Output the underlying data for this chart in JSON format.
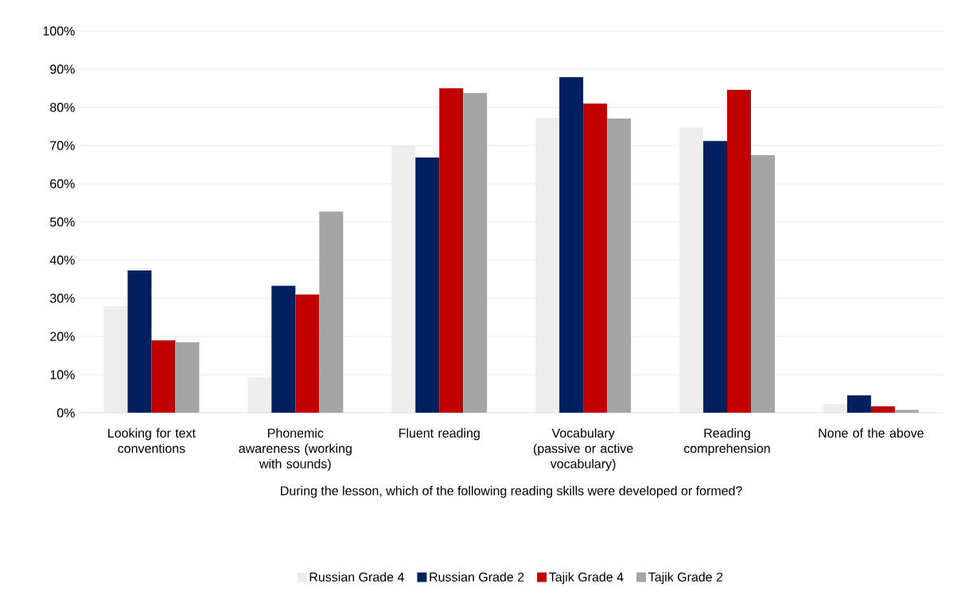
{
  "chart_data": {
    "type": "bar",
    "xlabel": "During the lesson, which of the following reading skills were developed or formed?",
    "categories": [
      "Looking for text conventions",
      "Phonemic awareness (working with sounds)",
      "Fluent reading",
      "Vocabulary (passive or active vocabulary)",
      "Reading comprehension",
      "None of the above"
    ],
    "series": [
      {
        "name": "Russian Grade 4",
        "color": "#ededed",
        "values": [
          27.9,
          9.2,
          70.0,
          77.3,
          74.8,
          2.3
        ]
      },
      {
        "name": "Russian Grade 2",
        "color": "#002060",
        "values": [
          37.3,
          33.3,
          66.9,
          87.9,
          71.2,
          4.6
        ]
      },
      {
        "name": "Tajik Grade 4",
        "color": "#c00000",
        "values": [
          19.0,
          31.0,
          85.0,
          81.0,
          84.6,
          1.7
        ]
      },
      {
        "name": "Tajik Grade 2",
        "color": "#a5a5a5",
        "values": [
          18.5,
          52.7,
          83.8,
          77.1,
          67.5,
          0.8
        ]
      }
    ],
    "ylim": [
      0,
      100
    ],
    "yticks": [
      {
        "value": 0,
        "label": "0%"
      },
      {
        "value": 10,
        "label": "10%"
      },
      {
        "value": 20,
        "label": "20%"
      },
      {
        "value": 30,
        "label": "30%"
      },
      {
        "value": 40,
        "label": "40%"
      },
      {
        "value": 50,
        "label": "50%"
      },
      {
        "value": 60,
        "label": "60%"
      },
      {
        "value": 70,
        "label": "70%"
      },
      {
        "value": 80,
        "label": "80%"
      },
      {
        "value": 90,
        "label": "90%"
      },
      {
        "value": 100,
        "label": "100%"
      }
    ],
    "grid": "y",
    "legend": "bottom"
  }
}
